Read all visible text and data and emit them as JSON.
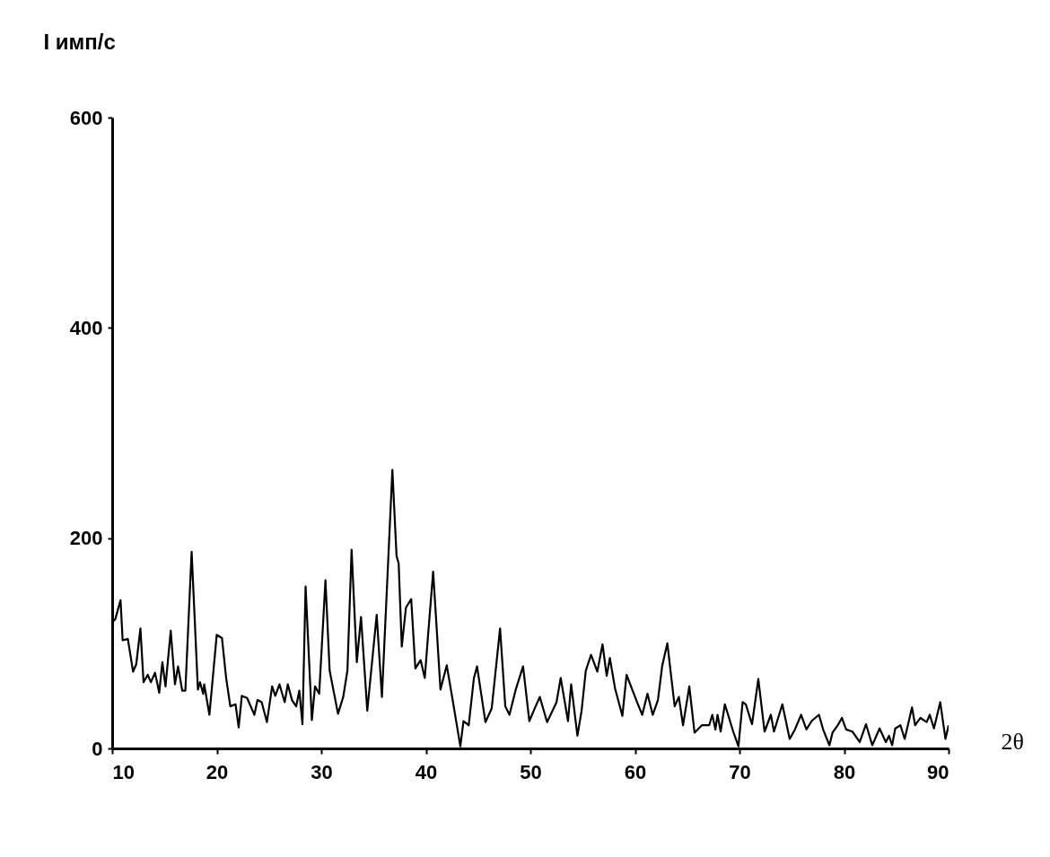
{
  "chart_data": {
    "type": "line",
    "ylabel": "I имп/с",
    "xlabel": "2θ",
    "xlim": [
      10,
      90
    ],
    "ylim": [
      0,
      600
    ],
    "xticks": [
      10,
      20,
      30,
      40,
      50,
      60,
      70,
      80,
      90
    ],
    "yticks": [
      0,
      200,
      400,
      600
    ],
    "grid": false,
    "marker": "none",
    "line_style": "solid",
    "series": [
      {
        "color": "#000000",
        "x": [
          10.0,
          10.3,
          10.8,
          11.0,
          11.5,
          12.0,
          12.3,
          12.7,
          13.0,
          13.4,
          13.7,
          14.1,
          14.5,
          14.8,
          15.1,
          15.6,
          16.0,
          16.3,
          16.7,
          17.0,
          17.6,
          18.2,
          18.4,
          18.7,
          18.8,
          19.3,
          20.0,
          20.5,
          20.9,
          21.3,
          21.8,
          22.1,
          22.4,
          22.9,
          23.6,
          23.9,
          24.3,
          24.8,
          25.3,
          25.6,
          26.0,
          26.5,
          26.8,
          27.2,
          27.6,
          27.9,
          28.2,
          28.5,
          29.1,
          29.4,
          29.8,
          30.4,
          30.8,
          31.6,
          32.1,
          32.5,
          32.9,
          33.4,
          33.8,
          34.4,
          35.3,
          35.8,
          36.8,
          37.2,
          37.4,
          37.7,
          38.1,
          38.6,
          39.0,
          39.5,
          39.9,
          40.2,
          40.7,
          41.4,
          42.0,
          42.6,
          43.3,
          43.6,
          44.1,
          44.6,
          44.9,
          45.7,
          46.3,
          47.1,
          47.6,
          48.0,
          48.6,
          49.3,
          49.9,
          50.5,
          50.9,
          51.6,
          52.5,
          52.9,
          53.6,
          53.9,
          54.5,
          54.9,
          55.3,
          55.8,
          56.4,
          56.9,
          57.3,
          57.6,
          58.1,
          58.8,
          59.2,
          60.2,
          60.7,
          61.2,
          61.7,
          62.2,
          62.6,
          63.1,
          63.8,
          64.2,
          64.6,
          65.2,
          65.7,
          66.4,
          67.1,
          67.4,
          67.7,
          67.9,
          68.2,
          68.6,
          69.4,
          69.9,
          70.3,
          70.6,
          71.2,
          71.8,
          72.4,
          73.0,
          73.3,
          74.1,
          74.8,
          75.3,
          75.9,
          76.4,
          76.9,
          77.6,
          78.0,
          78.6,
          78.9,
          79.4,
          79.8,
          80.2,
          80.8,
          81.5,
          82.1,
          82.7,
          83.4,
          84.0,
          84.3,
          84.6,
          84.9,
          85.4,
          85.8,
          86.5,
          86.8,
          87.3,
          87.9,
          88.2,
          88.6,
          89.2,
          89.7,
          90.0
        ],
        "values": [
          120,
          123,
          141,
          103,
          104,
          73,
          80,
          114,
          63,
          70,
          63,
          72,
          53,
          82,
          59,
          112,
          61,
          78,
          55,
          55,
          187,
          56,
          63,
          52,
          61,
          32,
          108,
          105,
          67,
          40,
          42,
          20,
          50,
          48,
          32,
          46,
          44,
          25,
          59,
          50,
          61,
          44,
          61,
          46,
          40,
          55,
          23,
          154,
          27,
          59,
          52,
          160,
          74,
          33,
          49,
          74,
          189,
          82,
          125,
          36,
          127,
          49,
          265,
          183,
          176,
          97,
          134,
          142,
          76,
          84,
          67,
          106,
          168,
          56,
          79,
          44,
          2,
          26,
          22,
          67,
          78,
          25,
          38,
          114,
          40,
          32,
          56,
          78,
          26,
          40,
          49,
          25,
          44,
          67,
          26,
          61,
          12,
          36,
          74,
          89,
          73,
          99,
          69,
          86,
          57,
          31,
          70,
          44,
          32,
          52,
          32,
          46,
          78,
          100,
          40,
          49,
          22,
          59,
          15,
          22,
          22,
          32,
          18,
          32,
          16,
          42,
          16,
          2,
          44,
          42,
          23,
          66,
          16,
          32,
          16,
          42,
          9,
          18,
          32,
          18,
          26,
          32,
          18,
          3,
          15,
          22,
          29,
          18,
          16,
          6,
          23,
          3,
          19,
          6,
          12,
          3,
          19,
          22,
          9,
          39,
          22,
          29,
          25,
          32,
          19,
          44,
          9,
          22
        ]
      }
    ]
  }
}
